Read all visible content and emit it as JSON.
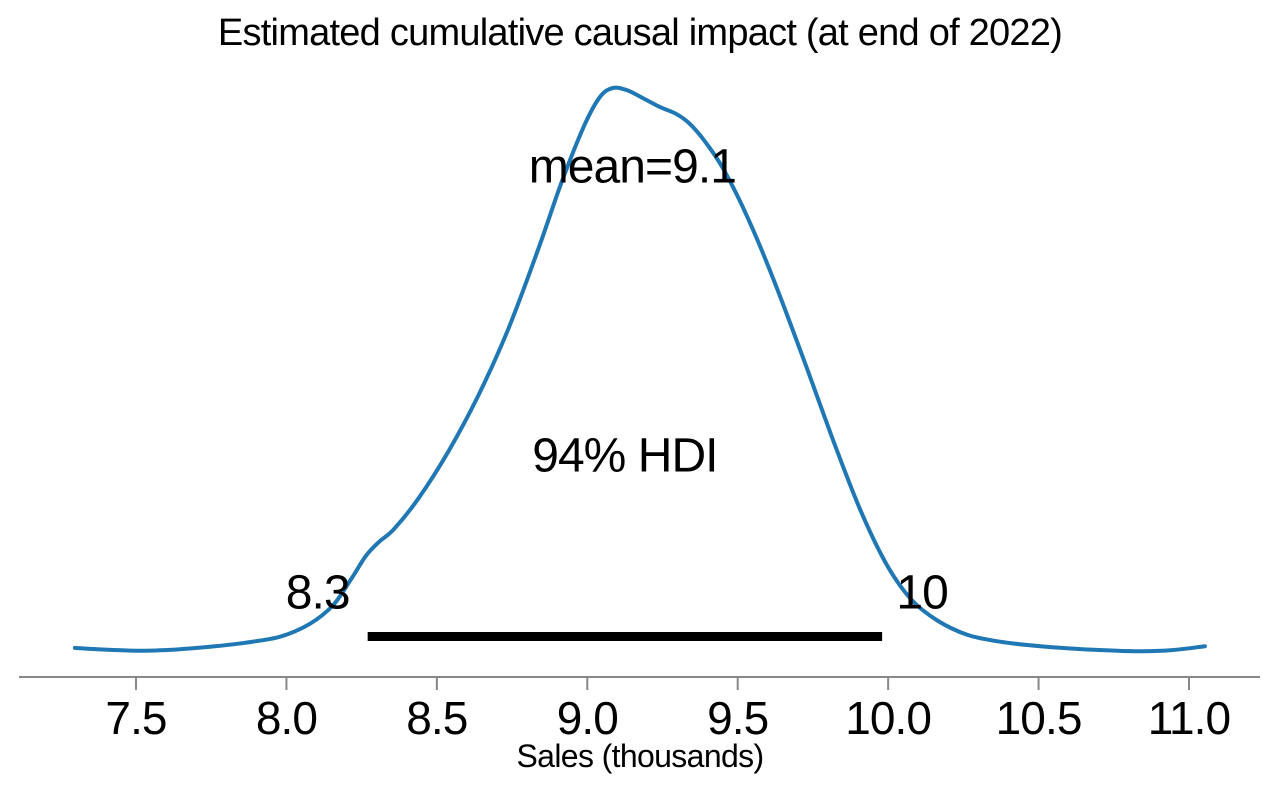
{
  "colors": {
    "curve": "#1f77b4",
    "hdi_bar": "#000000",
    "axis": "#888888",
    "text": "#000000",
    "background": "#ffffff"
  },
  "chart_data": {
    "type": "line",
    "subtype": "posterior-density-kde",
    "title": "Estimated cumulative causal impact (at end of 2022)",
    "xlabel": "Sales (thousands)",
    "ylabel": "",
    "grid": false,
    "legend": null,
    "xlim": [
      7.25,
      11.12
    ],
    "ylim_density_normalized": [
      0,
      1
    ],
    "mean": 9.1,
    "hdi_probability": 0.94,
    "hdi_lower": 8.27,
    "hdi_upper": 9.98,
    "annotations": {
      "mean_label": "mean=9.1",
      "hdi_label": "94% HDI",
      "hdi_lower_label": "8.3",
      "hdi_upper_label": "10"
    },
    "x_ticks": [
      7.5,
      8.0,
      8.5,
      9.0,
      9.5,
      10.0,
      10.5,
      11.0
    ],
    "x_tick_labels": [
      "7.5",
      "8.0",
      "8.5",
      "9.0",
      "9.5",
      "10.0",
      "10.5",
      "11.0"
    ],
    "curve": {
      "x": [
        7.297,
        7.397,
        7.513,
        7.63,
        7.746,
        7.862,
        7.979,
        8.078,
        8.155,
        8.218,
        8.264,
        8.308,
        8.358,
        8.437,
        8.537,
        8.637,
        8.737,
        8.836,
        8.916,
        8.989,
        9.042,
        9.085,
        9.132,
        9.185,
        9.242,
        9.295,
        9.341,
        9.395,
        9.454,
        9.534,
        9.621,
        9.72,
        9.827,
        9.913,
        10.0,
        10.079,
        10.166,
        10.265,
        10.372,
        10.505,
        10.671,
        10.82,
        10.943,
        11.053
      ],
      "density_normalized": [
        0.002,
        -0.001,
        -0.003,
        -0.001,
        0.004,
        0.011,
        0.022,
        0.045,
        0.078,
        0.127,
        0.166,
        0.191,
        0.214,
        0.267,
        0.351,
        0.451,
        0.57,
        0.711,
        0.834,
        0.932,
        0.984,
        1.0,
        0.996,
        0.982,
        0.966,
        0.954,
        0.936,
        0.902,
        0.854,
        0.768,
        0.656,
        0.515,
        0.358,
        0.241,
        0.146,
        0.087,
        0.05,
        0.025,
        0.013,
        0.005,
        -0.001,
        -0.004,
        -0.002,
        0.005
      ]
    }
  }
}
